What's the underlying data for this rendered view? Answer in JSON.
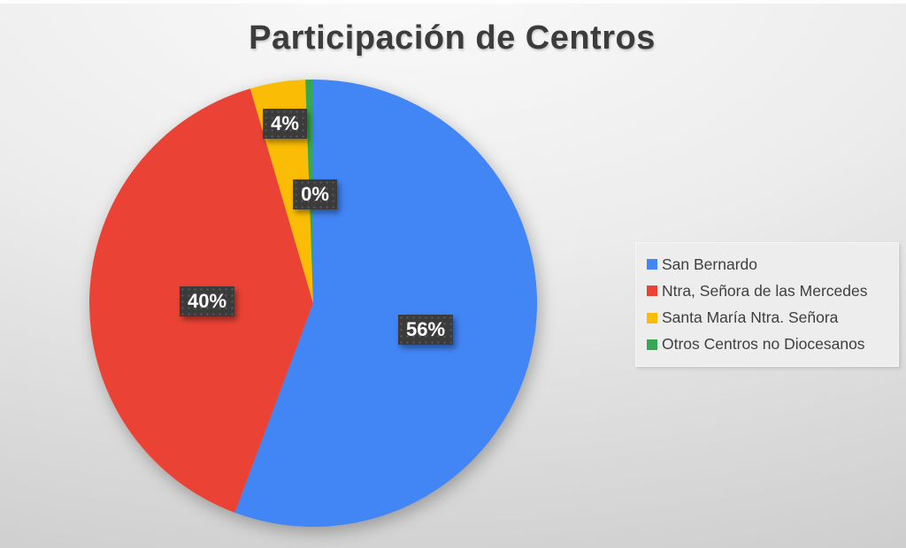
{
  "title": "Participación de Centros",
  "chart_data": {
    "type": "pie",
    "title": "Participación de Centros",
    "categories": [
      "San Bernardo",
      "Ntra, Señora de las Mercedes",
      "Santa María Ntra. Señora",
      "Otros Centros no Diocesanos"
    ],
    "values": [
      56,
      40,
      4,
      0
    ],
    "unit": "percent",
    "data_labels": [
      "56%",
      "40%",
      "4%",
      "0%"
    ],
    "colors": [
      "#4285F4",
      "#EA4335",
      "#FBBC05",
      "#34A853"
    ],
    "label_box_color": "#3B3B3B",
    "label_text_color": "#FFFFFF",
    "legend_position": "right",
    "start_angle": "top",
    "direction": "clockwise"
  }
}
